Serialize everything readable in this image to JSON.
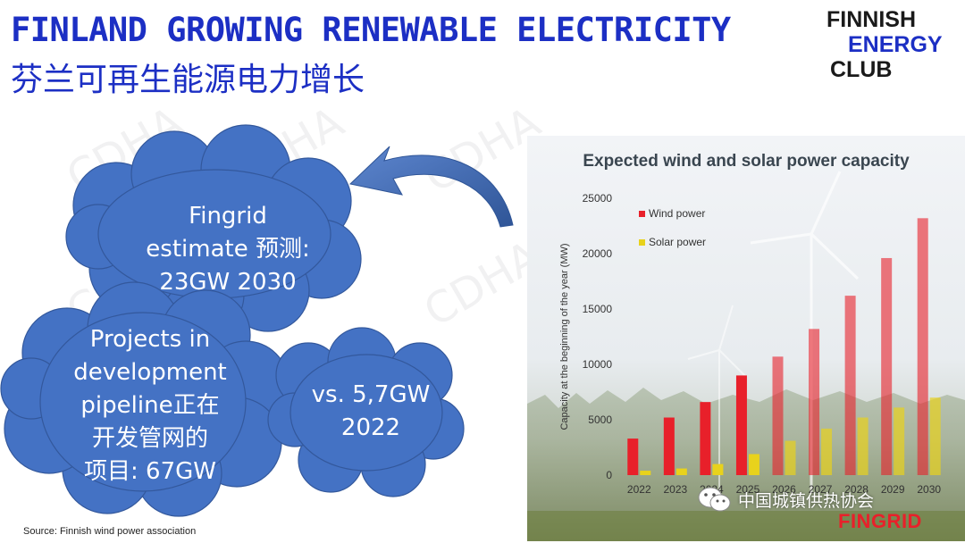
{
  "slide": {
    "title_en": "FINLAND GROWING RENEWABLE ELECTRICITY",
    "title_zh": "芬兰可再生能源电力增长",
    "logo": {
      "line1": "FINNISH",
      "line2": "ENERGY",
      "line3": "CLUB"
    },
    "source": "Source: Finnish wind power association",
    "watermark": "CDHA",
    "clouds": {
      "fingrid": "Fingrid\nestimate 预测:\n23GW 2030",
      "projects": "Projects in\ndevelopment\npipeline正在\n开发管网的\n项目: 67GW",
      "vs": "vs. 5,7GW\n2022"
    },
    "wechat_label": "中国城镇供热协会",
    "fingrid_logo": "FINGRID"
  },
  "colors": {
    "title": "#1c2fc4",
    "cloud": "#4472c4",
    "wind": "#e8202a",
    "solar": "#e8d21c"
  },
  "chart_data": {
    "type": "bar",
    "title": "Expected wind and solar power capacity",
    "ylabel": "Capacity at the beginning of the year (MW)",
    "xlabel": "",
    "categories": [
      "2022",
      "2023",
      "2024",
      "2025",
      "2026",
      "2027",
      "2028",
      "2029",
      "2030"
    ],
    "series": [
      {
        "name": "Wind power",
        "color": "#e8202a",
        "values": [
          3300,
          5200,
          6600,
          9000,
          10700,
          13200,
          16200,
          19600,
          23200
        ]
      },
      {
        "name": "Solar power",
        "color": "#e8d21c",
        "values": [
          400,
          600,
          1000,
          1900,
          3100,
          4200,
          5200,
          6100,
          7000
        ]
      }
    ],
    "ylim": [
      0,
      25000
    ],
    "yticks": [
      0,
      5000,
      10000,
      15000,
      20000,
      25000
    ],
    "legend": "top-left",
    "grid": false
  }
}
